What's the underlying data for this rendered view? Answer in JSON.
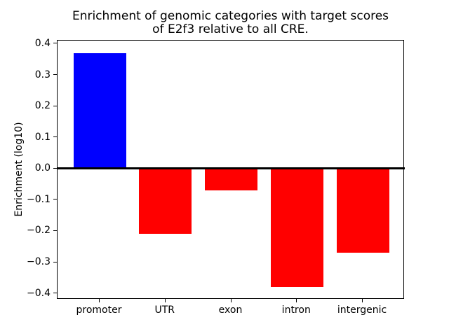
{
  "chart_data": {
    "type": "bar",
    "title_lines": [
      "Enrichment of genomic categories with target scores",
      "of E2f3 relative to all CRE."
    ],
    "title": "Enrichment of genomic categories with target scores\nof E2f3 relative to all CRE.",
    "xlabel": "",
    "ylabel": "Enrichment (log10)",
    "categories": [
      "promoter",
      "UTR",
      "exon",
      "intron",
      "intergenic"
    ],
    "values": [
      0.37,
      -0.21,
      -0.07,
      -0.38,
      -0.27
    ],
    "bar_colors": [
      "#0000ff",
      "#ff0000",
      "#ff0000",
      "#ff0000",
      "#ff0000"
    ],
    "positive_color": "#0000ff",
    "negative_color": "#ff0000",
    "yticks": [
      0.4,
      0.3,
      0.2,
      0.1,
      0.0,
      -0.1,
      -0.2,
      -0.3,
      -0.4
    ],
    "ytick_labels": [
      "0.4",
      "0.3",
      "0.2",
      "0.1",
      "0.0",
      "−0.1",
      "−0.2",
      "−0.3",
      "−0.4"
    ],
    "ylim": [
      -0.42,
      0.41
    ],
    "xlim": [
      -0.64,
      4.64
    ],
    "bar_width": 0.8,
    "zero_line": true,
    "grid": false,
    "legend": null,
    "background_color": "#ffffff",
    "axis_color": "#000000"
  }
}
